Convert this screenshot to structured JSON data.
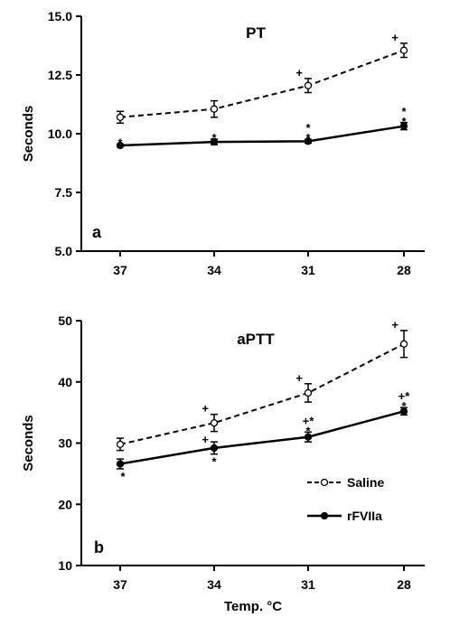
{
  "chart_data": [
    {
      "type": "line",
      "title": "PT",
      "panel_label": "a",
      "xlabel": "",
      "ylabel": "Seconds",
      "categories": [
        "37",
        "34",
        "31",
        "28"
      ],
      "ylim": [
        5.0,
        15.0
      ],
      "yticks": [
        "5.0",
        "7.5",
        "10.0",
        "12.5",
        "15.0"
      ],
      "series": [
        {
          "name": "Saline",
          "style": "dashed",
          "marker": "open-circle",
          "values": [
            10.7,
            11.05,
            12.05,
            13.55
          ],
          "errors": [
            0.25,
            0.35,
            0.3,
            0.3
          ]
        },
        {
          "name": "rFVIIa",
          "style": "solid",
          "marker": "filled-circle",
          "values": [
            9.5,
            9.65,
            9.68,
            10.32
          ],
          "errors": [
            0.05,
            0.12,
            0.08,
            0.15
          ]
        }
      ],
      "annotations": [
        {
          "series": "Saline",
          "index": 2,
          "text": "+"
        },
        {
          "series": "Saline",
          "index": 3,
          "text": "+"
        },
        {
          "series": "rFVIIa",
          "index": 0,
          "text": "*"
        },
        {
          "series": "rFVIIa",
          "index": 1,
          "text": "*"
        },
        {
          "series": "rFVIIa",
          "index": 2,
          "text": "*\n*"
        },
        {
          "series": "rFVIIa",
          "index": 3,
          "text": "*\n*"
        }
      ]
    },
    {
      "type": "line",
      "title": "aPTT",
      "panel_label": "b",
      "xlabel": "Temp. °C",
      "ylabel": "Seconds",
      "categories": [
        "37",
        "34",
        "31",
        "28"
      ],
      "ylim": [
        10,
        50
      ],
      "yticks": [
        "10",
        "20",
        "30",
        "40",
        "50"
      ],
      "legend": [
        {
          "name": "Saline",
          "style": "dashed",
          "marker": "open-circle"
        },
        {
          "name": "rFVIIa",
          "style": "solid",
          "marker": "filled-circle"
        }
      ],
      "series": [
        {
          "name": "Saline",
          "style": "dashed",
          "marker": "open-circle",
          "values": [
            29.8,
            33.3,
            38.2,
            46.2
          ],
          "errors": [
            1.0,
            1.4,
            1.5,
            2.2
          ]
        },
        {
          "name": "rFVIIa",
          "style": "solid",
          "marker": "filled-circle",
          "values": [
            26.6,
            29.2,
            31.0,
            35.2
          ],
          "errors": [
            0.8,
            1.0,
            0.8,
            0.6
          ]
        }
      ],
      "annotations": [
        {
          "series": "Saline",
          "index": 1,
          "text": "+"
        },
        {
          "series": "Saline",
          "index": 2,
          "text": "+"
        },
        {
          "series": "Saline",
          "index": 3,
          "text": "+"
        },
        {
          "series": "rFVIIa",
          "index": 0,
          "text": "*"
        },
        {
          "series": "rFVIIa",
          "index": 1,
          "text": "+\n*"
        },
        {
          "series": "rFVIIa",
          "index": 2,
          "text": "+*\n*"
        },
        {
          "series": "rFVIIa",
          "index": 3,
          "text": "+*\n*"
        }
      ]
    }
  ]
}
